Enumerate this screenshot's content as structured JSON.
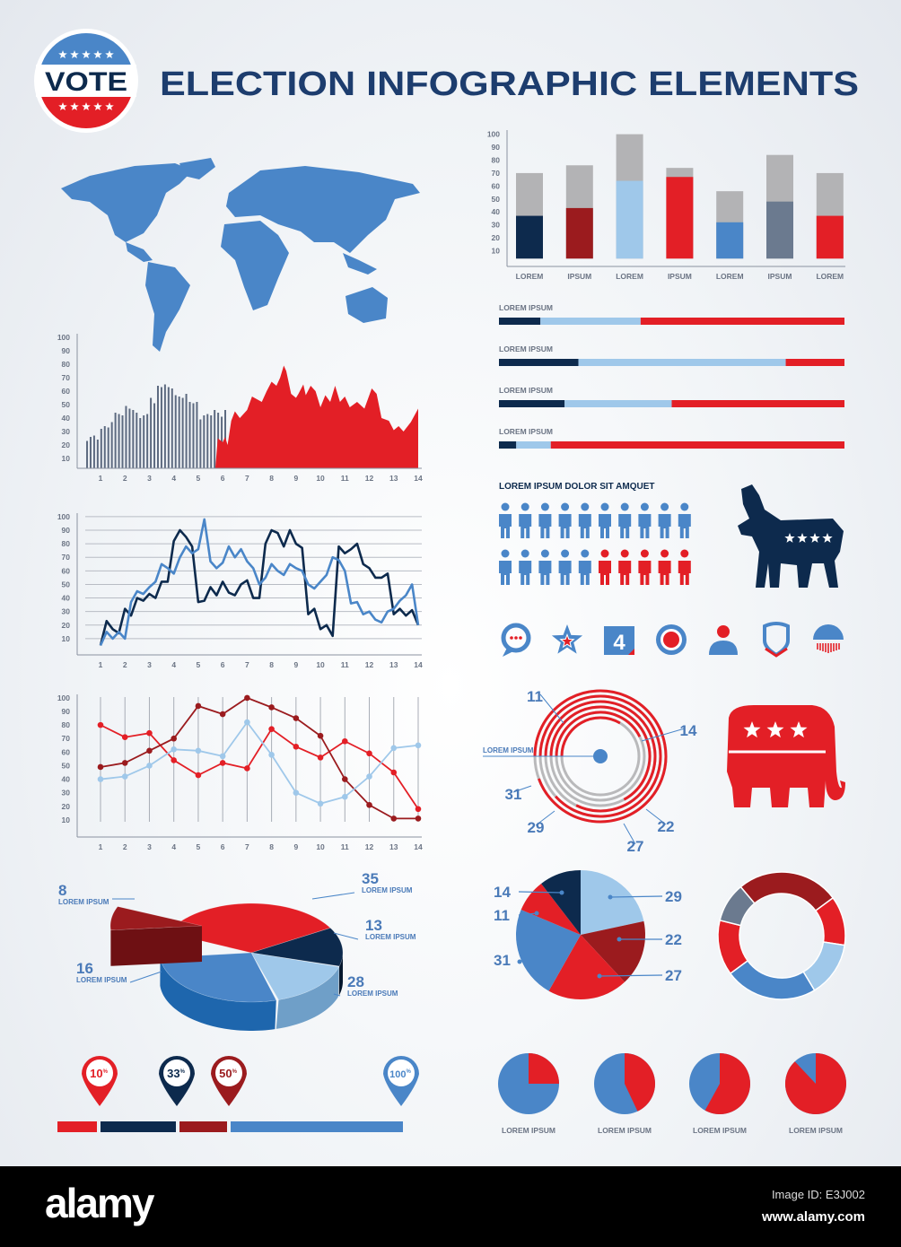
{
  "header": {
    "title": "ELECTION INFOGRAPHIC ELEMENTS",
    "badge_text": "VOTE"
  },
  "colors": {
    "navy": "#0d2a4d",
    "dark_red": "#9b1b1e",
    "light_blue": "#9fc8ea",
    "red": "#e31f26",
    "blue": "#4a86c8",
    "slate": "#6b7a8f",
    "gray": "#b3b3b5",
    "title": "#1d3d6e"
  },
  "chart_data": [
    {
      "type": "bar",
      "stacked": true,
      "categories": [
        "LOREM",
        "IPSUM",
        "LOREM",
        "IPSUM",
        "LOREM",
        "IPSUM",
        "LOREM"
      ],
      "colored_values": [
        37,
        43,
        64,
        67,
        32,
        48,
        37
      ],
      "total_values": [
        70,
        76,
        100,
        74,
        56,
        84,
        70
      ],
      "colored_colors": [
        "#0d2a4d",
        "#9b1b1e",
        "#9fc8ea",
        "#e31f26",
        "#4a86c8",
        "#6b7a8f",
        "#e31f26"
      ],
      "yticks": [
        "10",
        "20",
        "30",
        "40",
        "50",
        "60",
        "70",
        "80",
        "90",
        "100"
      ],
      "ylim": [
        0,
        100
      ],
      "grid": false
    },
    {
      "type": "bar+area",
      "xticks": [
        "1",
        "2",
        "3",
        "4",
        "5",
        "6",
        "7",
        "8",
        "9",
        "10",
        "11",
        "12",
        "13",
        "14"
      ],
      "yticks": [
        "10",
        "20",
        "30",
        "40",
        "50",
        "60",
        "70",
        "80",
        "90",
        "100"
      ],
      "ylim": [
        0,
        100
      ],
      "xlim": [
        0.4,
        14
      ],
      "bars": {
        "x_start": 0.45,
        "x_step": 0.145,
        "values": [
          23,
          26,
          27,
          24,
          32,
          34,
          33,
          37,
          44,
          43,
          42,
          49,
          47,
          46,
          44,
          40,
          42,
          43,
          55,
          51,
          64,
          63,
          65,
          63,
          62,
          57,
          56,
          55,
          58,
          52,
          51,
          52,
          39,
          42,
          43,
          42,
          46,
          44,
          41,
          46
        ]
      },
      "area": {
        "x": [
          5.7,
          5.8,
          6.0,
          6.1,
          6.2,
          6.35,
          6.5,
          6.7,
          6.9,
          7.0,
          7.2,
          7.4,
          7.6,
          7.8,
          8.0,
          8.2,
          8.35,
          8.5,
          8.6,
          8.8,
          9.0,
          9.1,
          9.3,
          9.4,
          9.6,
          9.8,
          10.0,
          10.2,
          10.4,
          10.6,
          10.8,
          11.0,
          11.2,
          11.5,
          11.8,
          12.1,
          12.3,
          12.5,
          12.8,
          13.0,
          13.2,
          13.4,
          13.7,
          14.0
        ],
        "y": [
          0,
          25,
          22,
          26,
          20,
          38,
          45,
          40,
          44,
          46,
          56,
          54,
          52,
          60,
          67,
          64,
          70,
          79,
          75,
          58,
          55,
          58,
          65,
          57,
          64,
          60,
          48,
          57,
          52,
          64,
          52,
          56,
          48,
          52,
          47,
          62,
          58,
          40,
          38,
          31,
          34,
          30,
          37,
          47
        ]
      }
    },
    {
      "type": "line",
      "xticks": [
        "1",
        "2",
        "3",
        "4",
        "5",
        "6",
        "7",
        "8",
        "9",
        "10",
        "11",
        "12",
        "13",
        "14"
      ],
      "yticks": [
        "10",
        "20",
        "30",
        "40",
        "50",
        "60",
        "70",
        "80",
        "90",
        "100"
      ],
      "ylim": [
        0,
        100
      ],
      "grid": true,
      "x_start": 1,
      "x_step": 0.25,
      "series": [
        {
          "color": "#0d2a4d",
          "values": [
            5,
            23,
            17,
            14,
            32,
            27,
            40,
            38,
            43,
            40,
            52,
            52,
            82,
            90,
            85,
            78,
            37,
            38,
            48,
            42,
            52,
            44,
            42,
            50,
            53,
            40,
            40,
            80,
            90,
            88,
            78,
            90,
            80,
            77,
            28,
            32,
            17,
            20,
            12,
            78,
            73,
            76,
            80,
            65,
            62,
            55,
            55,
            58,
            28,
            32,
            27,
            31,
            20
          ]
        },
        {
          "color": "#4a86c8",
          "values": [
            5,
            15,
            10,
            15,
            10,
            37,
            45,
            43,
            48,
            52,
            65,
            62,
            58,
            70,
            78,
            73,
            76,
            98,
            67,
            62,
            66,
            78,
            70,
            76,
            67,
            62,
            50,
            55,
            65,
            60,
            57,
            65,
            62,
            60,
            50,
            47,
            52,
            57,
            70,
            68,
            60,
            36,
            37,
            28,
            30,
            24,
            22,
            30,
            32,
            38,
            42,
            50,
            20
          ]
        }
      ]
    },
    {
      "type": "line",
      "markers": true,
      "xticks": [
        "1",
        "2",
        "3",
        "4",
        "5",
        "6",
        "7",
        "8",
        "9",
        "10",
        "11",
        "12",
        "13",
        "14"
      ],
      "yticks": [
        "10",
        "20",
        "30",
        "40",
        "50",
        "60",
        "70",
        "80",
        "90",
        "100"
      ],
      "ylim": [
        0,
        100
      ],
      "grid": "vertical",
      "series": [
        {
          "color": "#e31f26",
          "values": [
            80,
            71,
            74,
            54,
            43,
            52,
            48,
            77,
            64,
            56,
            68,
            59,
            45,
            18
          ]
        },
        {
          "color": "#9b1b1e",
          "values": [
            49,
            52,
            61,
            70,
            94,
            88,
            100,
            93,
            85,
            72,
            40,
            21,
            11,
            11
          ]
        },
        {
          "color": "#9fc8ea",
          "values": [
            40,
            42,
            50,
            62,
            61,
            57,
            82,
            58,
            30,
            22,
            27,
            42,
            63,
            65
          ]
        }
      ]
    },
    {
      "type": "pie",
      "style": "3d-exploded",
      "slices": [
        {
          "value": 8,
          "label": "8",
          "caption": "LOREM IPSUM",
          "color": "#9b1b1e"
        },
        {
          "value": 35,
          "label": "35",
          "caption": "LOREM IPSUM",
          "color": "#e31f26"
        },
        {
          "value": 13,
          "label": "13",
          "caption": "LOREM IPSUM",
          "color": "#0d2a4d"
        },
        {
          "value": 16,
          "label": "16",
          "caption": "LOREM IPSUM",
          "color": "#9fc8ea"
        },
        {
          "value": 28,
          "label": "28",
          "caption": "LOREM IPSUM",
          "color": "#4a86c8"
        }
      ]
    },
    {
      "type": "radial-rings",
      "center_label": "LOREM IPSUM",
      "values": [
        11,
        14,
        22,
        27,
        29,
        31
      ],
      "labels": [
        "11",
        "14",
        "22",
        "27",
        "29",
        "31"
      ]
    },
    {
      "type": "pie",
      "slices": [
        {
          "value": 29,
          "label": "29",
          "color": "#9fc8ea"
        },
        {
          "value": 22,
          "label": "22",
          "color": "#9b1b1e"
        },
        {
          "value": 27,
          "label": "27",
          "color": "#e31f26"
        },
        {
          "value": 31,
          "label": "31",
          "color": "#4a86c8"
        },
        {
          "value": 11,
          "label": "11",
          "color": "#e31f26"
        },
        {
          "value": 14,
          "label": "14",
          "color": "#0d2a4d"
        }
      ]
    },
    {
      "type": "donut",
      "values_percent": [
        26,
        12.5,
        14,
        23.5,
        14,
        10
      ],
      "colors": [
        "#9b1b1e",
        "#e31f26",
        "#9fc8ea",
        "#4a86c8",
        "#e31f26",
        "#6b7a8f"
      ]
    },
    {
      "type": "pie",
      "style": "small-multiples",
      "items": [
        {
          "red_percent": 25,
          "label": "LOREM IPSUM"
        },
        {
          "red_percent": 43,
          "label": "LOREM IPSUM"
        },
        {
          "red_percent": 58,
          "label": "LOREM IPSUM"
        },
        {
          "red_percent": 88,
          "label": "LOREM IPSUM"
        }
      ]
    }
  ],
  "segment_bars": [
    {
      "label": "LOREM IPSUM",
      "navy": 12,
      "light_blue": 29,
      "red": 59
    },
    {
      "label": "LOREM IPSUM",
      "navy": 23,
      "light_blue": 60,
      "red": 17
    },
    {
      "label": "LOREM IPSUM",
      "navy": 19,
      "light_blue": 31,
      "red": 50
    },
    {
      "label": "LOREM IPSUM",
      "navy": 5,
      "light_blue": 10,
      "red": 85
    }
  ],
  "pictogram": {
    "title": "LOREM IPSUM DOLOR SIT AMQUET",
    "rows": [
      {
        "blue": 10,
        "red": 0
      },
      {
        "blue": 5,
        "red": 5
      }
    ]
  },
  "icons": [
    "speech-bubble-icon",
    "star-icon",
    "calendar-4-icon",
    "target-badge-icon",
    "candidate-icon",
    "shield-icon",
    "flag-badge-icon"
  ],
  "pins": [
    {
      "label": "10",
      "unit": "%",
      "color": "#e31f26"
    },
    {
      "label": "33",
      "unit": "%",
      "color": "#0d2a4d"
    },
    {
      "label": "50",
      "unit": "%",
      "color": "#9b1b1e"
    },
    {
      "label": "100",
      "unit": "%",
      "color": "#4a86c8"
    }
  ],
  "footer": {
    "logo": "alamy",
    "image_id": "Image ID: E3J002",
    "url": "www.alamy.com"
  }
}
